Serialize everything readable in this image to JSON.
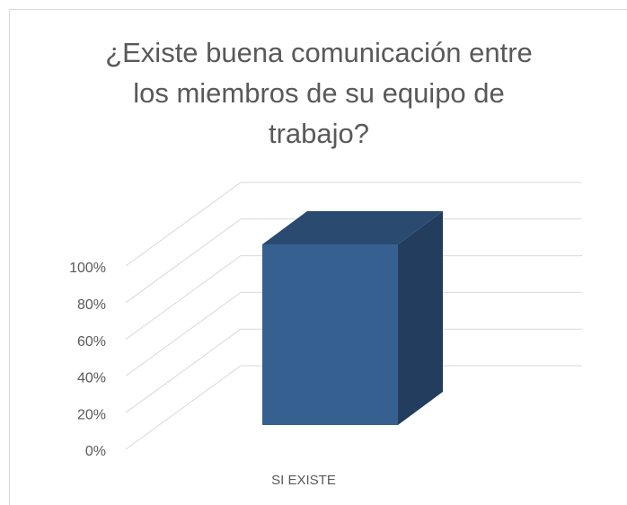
{
  "chart_data": {
    "type": "bar3d",
    "title": "¿Existe buena comunicación entre los miembros de su equipo de trabajo?",
    "categories": [
      "SI EXISTE"
    ],
    "values": [
      100
    ],
    "color": "#36608f",
    "ylim": [
      0,
      100
    ],
    "yticks": [
      {
        "value": 0,
        "label": "0%"
      },
      {
        "value": 20,
        "label": "20%"
      },
      {
        "value": 40,
        "label": "40%"
      },
      {
        "value": 60,
        "label": "60%"
      },
      {
        "value": 80,
        "label": "80%"
      },
      {
        "value": 100,
        "label": "100%"
      }
    ],
    "grid": true
  }
}
